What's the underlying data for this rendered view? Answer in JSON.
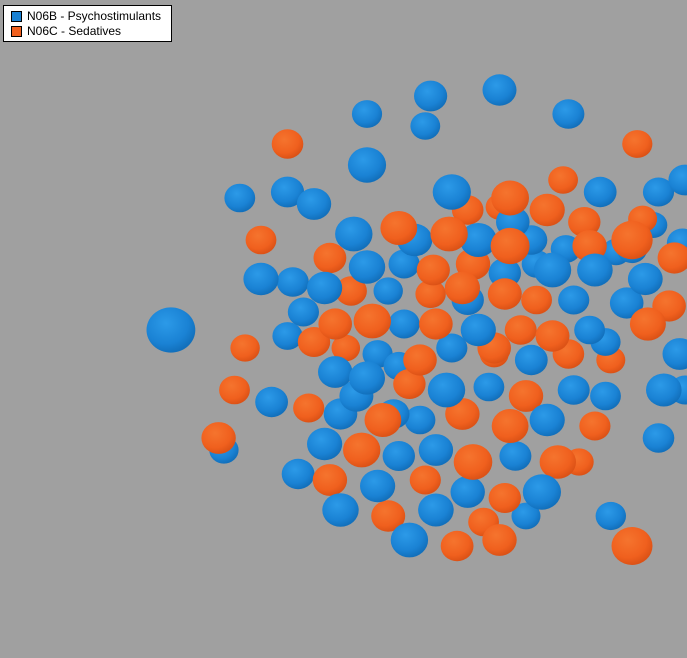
{
  "legend": {
    "position": "top-left",
    "items": [
      {
        "label": "N06B - Psychostimulants",
        "color": "#1a82d4"
      },
      {
        "label": "N06C - Sedatives",
        "color": "#f0601e"
      }
    ]
  },
  "chart_data": {
    "type": "scatter",
    "title": "",
    "xlabel": "",
    "ylabel": "",
    "grid": false,
    "axes": false,
    "background": "#a0a0a0",
    "series": [
      {
        "name": "N06B - Psychostimulants",
        "color": "#1a82d4"
      },
      {
        "name": "N06C - Sedatives",
        "color": "#f0601e"
      }
    ],
    "points": [
      [
        0.8,
        -0.3,
        0.62,
        1
      ],
      [
        0.8,
        0.72,
        0.61,
        1
      ],
      [
        -0.2,
        -0.55,
        0.54,
        0
      ],
      [
        0.82,
        -0.62,
        0.33,
        1
      ],
      [
        0.12,
        -0.46,
        0.54,
        0
      ],
      [
        -0.5,
        -0.62,
        0.37,
        1
      ],
      [
        0.34,
        -0.44,
        0.53,
        1
      ],
      [
        -0.4,
        -0.42,
        0.44,
        0
      ],
      [
        0.18,
        -0.4,
        0.37,
        1
      ],
      [
        0.3,
        -0.41,
        0.27,
        1
      ],
      [
        0.35,
        -0.36,
        0.42,
        0
      ],
      [
        0.48,
        -0.4,
        0.46,
        1
      ],
      [
        0.62,
        -0.36,
        0.39,
        1
      ],
      [
        0.84,
        -0.37,
        0.3,
        1
      ],
      [
        0.88,
        -0.35,
        0.28,
        0
      ],
      [
        0.99,
        -0.29,
        0.36,
        0
      ],
      [
        -0.25,
        -0.32,
        0.52,
        0
      ],
      [
        -0.08,
        -0.34,
        0.5,
        1
      ],
      [
        -0.02,
        -0.3,
        0.46,
        0
      ],
      [
        0.11,
        -0.32,
        0.52,
        1
      ],
      [
        0.22,
        -0.3,
        0.5,
        0
      ],
      [
        0.34,
        -0.28,
        0.56,
        1
      ],
      [
        0.42,
        -0.3,
        0.38,
        0
      ],
      [
        0.55,
        -0.27,
        0.33,
        0
      ],
      [
        0.64,
        -0.28,
        0.44,
        1
      ],
      [
        0.74,
        -0.26,
        0.29,
        0
      ],
      [
        0.8,
        -0.27,
        0.34,
        0
      ],
      [
        0.96,
        -0.24,
        0.42,
        1
      ],
      [
        -0.34,
        -0.24,
        0.4,
        1
      ],
      [
        -0.2,
        -0.21,
        0.49,
        0
      ],
      [
        -0.06,
        -0.22,
        0.36,
        0
      ],
      [
        0.05,
        -0.2,
        0.41,
        1
      ],
      [
        0.2,
        -0.22,
        0.44,
        1
      ],
      [
        0.32,
        -0.19,
        0.39,
        0
      ],
      [
        0.5,
        -0.2,
        0.52,
        0
      ],
      [
        0.66,
        -0.2,
        0.47,
        0
      ],
      [
        0.85,
        -0.17,
        0.45,
        0
      ],
      [
        -0.6,
        -0.17,
        0.46,
        0
      ],
      [
        -0.48,
        -0.16,
        0.38,
        0
      ],
      [
        -0.36,
        -0.14,
        0.46,
        0
      ],
      [
        -0.26,
        -0.13,
        0.37,
        1
      ],
      [
        -0.12,
        -0.13,
        0.31,
        0
      ],
      [
        0.04,
        -0.12,
        0.34,
        1
      ],
      [
        0.18,
        -0.1,
        0.39,
        0
      ],
      [
        0.32,
        -0.12,
        0.43,
        1
      ],
      [
        0.44,
        -0.1,
        0.35,
        1
      ],
      [
        0.58,
        -0.1,
        0.36,
        0
      ],
      [
        0.78,
        -0.09,
        0.42,
        0
      ],
      [
        0.94,
        -0.08,
        0.42,
        1
      ],
      [
        -0.32,
        -0.02,
        0.42,
        1
      ],
      [
        -0.18,
        -0.03,
        0.52,
        1
      ],
      [
        -0.06,
        -0.02,
        0.36,
        0
      ],
      [
        0.06,
        -0.02,
        0.42,
        1
      ],
      [
        0.22,
        0.0,
        0.46,
        0
      ],
      [
        0.38,
        0.0,
        0.38,
        1
      ],
      [
        0.5,
        0.02,
        0.43,
        1
      ],
      [
        0.64,
        0.0,
        0.35,
        0
      ],
      [
        0.86,
        -0.02,
        0.48,
        1
      ],
      [
        -0.5,
        0.02,
        0.33,
        0
      ],
      [
        -0.4,
        0.04,
        0.39,
        1
      ],
      [
        -0.28,
        0.06,
        0.29,
        1
      ],
      [
        -0.16,
        0.08,
        0.33,
        0
      ],
      [
        0.0,
        0.1,
        0.42,
        1
      ],
      [
        0.12,
        0.06,
        0.36,
        0
      ],
      [
        0.28,
        0.08,
        0.3,
        1
      ],
      [
        0.42,
        0.1,
        0.4,
        0
      ],
      [
        0.56,
        0.08,
        0.37,
        1
      ],
      [
        0.72,
        0.1,
        0.3,
        1
      ],
      [
        -0.32,
        0.14,
        0.44,
        0
      ],
      [
        -0.2,
        0.16,
        0.48,
        0
      ],
      [
        -0.04,
        0.18,
        0.39,
        1
      ],
      [
        0.1,
        0.2,
        0.52,
        0
      ],
      [
        0.26,
        0.19,
        0.35,
        0
      ],
      [
        0.4,
        0.22,
        0.44,
        1
      ],
      [
        0.58,
        0.2,
        0.38,
        0
      ],
      [
        0.7,
        0.22,
        0.35,
        0
      ],
      [
        0.92,
        0.2,
        0.47,
        0
      ],
      [
        -0.56,
        0.24,
        0.4,
        0
      ],
      [
        -0.42,
        0.26,
        0.36,
        1
      ],
      [
        -0.3,
        0.28,
        0.42,
        0
      ],
      [
        -0.14,
        0.3,
        0.5,
        1
      ],
      [
        0.0,
        0.3,
        0.35,
        0
      ],
      [
        0.16,
        0.28,
        0.44,
        1
      ],
      [
        0.34,
        0.32,
        0.5,
        1
      ],
      [
        0.48,
        0.3,
        0.46,
        0
      ],
      [
        0.66,
        0.32,
        0.36,
        1
      ],
      [
        -0.36,
        0.38,
        0.46,
        0
      ],
      [
        -0.22,
        0.4,
        0.52,
        1
      ],
      [
        -0.08,
        0.42,
        0.39,
        0
      ],
      [
        0.06,
        0.4,
        0.44,
        0
      ],
      [
        0.2,
        0.44,
        0.55,
        1
      ],
      [
        0.36,
        0.42,
        0.38,
        0
      ],
      [
        0.52,
        0.44,
        0.49,
        1
      ],
      [
        -0.46,
        0.48,
        0.4,
        0
      ],
      [
        -0.34,
        0.5,
        0.44,
        1
      ],
      [
        -0.16,
        0.52,
        0.46,
        0
      ],
      [
        0.02,
        0.5,
        0.36,
        1
      ],
      [
        0.18,
        0.54,
        0.44,
        0
      ],
      [
        0.32,
        0.56,
        0.39,
        1
      ],
      [
        0.46,
        0.54,
        0.54,
        0
      ],
      [
        -0.3,
        0.6,
        0.49,
        0
      ],
      [
        -0.12,
        0.62,
        0.43,
        1
      ],
      [
        0.06,
        0.6,
        0.47,
        0
      ],
      [
        0.24,
        0.64,
        0.35,
        1
      ],
      [
        0.4,
        0.62,
        0.3,
        0
      ],
      [
        -0.04,
        0.7,
        0.52,
        0
      ],
      [
        0.14,
        0.72,
        0.4,
        1
      ],
      [
        0.3,
        0.7,
        0.44,
        1
      ],
      [
        -0.5,
        -0.46,
        0.41,
        0
      ],
      [
        -0.6,
        -0.3,
        0.35,
        1
      ],
      [
        0.54,
        -0.5,
        0.32,
        1
      ],
      [
        0.68,
        -0.46,
        0.4,
        0
      ],
      [
        0.9,
        -0.46,
        0.36,
        0
      ],
      [
        1.0,
        -0.5,
        0.41,
        0
      ],
      [
        -0.66,
        0.06,
        0.31,
        1
      ],
      [
        -0.7,
        0.2,
        0.35,
        1
      ],
      [
        0.98,
        0.08,
        0.44,
        0
      ],
      [
        1.0,
        0.2,
        0.36,
        0
      ],
      [
        -0.76,
        0.36,
        0.44,
        1
      ],
      [
        0.9,
        0.36,
        0.37,
        0
      ],
      [
        -0.94,
        0.0,
        0.81,
        0
      ],
      [
        -0.68,
        -0.44,
        0.35,
        0
      ],
      [
        -0.74,
        0.4,
        0.31,
        0
      ],
      [
        0.72,
        0.62,
        0.34,
        0
      ],
      [
        0.04,
        -0.78,
        0.41,
        0
      ],
      [
        0.3,
        -0.8,
        0.43,
        0
      ],
      [
        0.56,
        -0.72,
        0.38,
        0
      ],
      [
        -0.2,
        -0.72,
        0.33,
        0
      ],
      [
        0.02,
        -0.68,
        0.32,
        0
      ],
      [
        0.6,
        0.44,
        0.31,
        1
      ],
      [
        -0.1,
        0.28,
        0.38,
        0
      ],
      [
        0.16,
        -0.14,
        0.46,
        1
      ],
      [
        -0.08,
        0.12,
        0.34,
        0
      ],
      [
        0.28,
        0.06,
        0.42,
        1
      ],
      [
        0.44,
        -0.22,
        0.32,
        0
      ],
      [
        -0.44,
        -0.06,
        0.36,
        0
      ],
      [
        0.7,
        0.04,
        0.33,
        0
      ],
      [
        -0.24,
        0.22,
        0.43,
        0
      ]
    ]
  }
}
